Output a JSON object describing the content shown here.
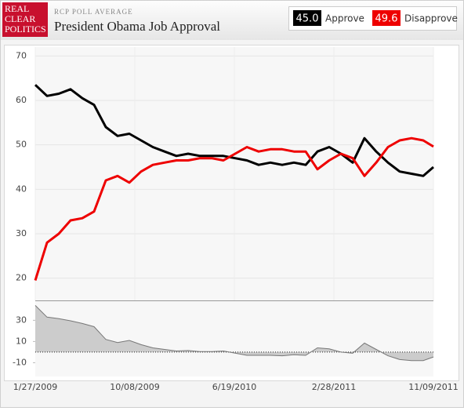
{
  "header": {
    "logo": [
      "REAL",
      "CLEAR",
      "POLITICS"
    ],
    "kicker": "RCP POLL AVERAGE"
  },
  "chart_data": [
    {
      "type": "line",
      "title": "President Obama Job Approval",
      "x": [
        "2009-01-27",
        "2009-02-26",
        "2009-03-28",
        "2009-04-27",
        "2009-05-27",
        "2009-06-26",
        "2009-07-26",
        "2009-08-25",
        "2009-09-24",
        "2009-10-24",
        "2009-11-23",
        "2009-12-23",
        "2010-01-22",
        "2010-02-21",
        "2010-03-23",
        "2010-04-22",
        "2010-05-22",
        "2010-06-21",
        "2010-07-21",
        "2010-08-20",
        "2010-09-19",
        "2010-10-19",
        "2010-11-18",
        "2010-12-18",
        "2011-01-17",
        "2011-02-16",
        "2011-03-18",
        "2011-04-17",
        "2011-05-17",
        "2011-06-16",
        "2011-07-16",
        "2011-08-15",
        "2011-09-14",
        "2011-10-14",
        "2011-11-09"
      ],
      "series": [
        {
          "name": "Approve",
          "color": "#000000",
          "legend_value": {
            "value": 45,
            "label": "45.0"
          },
          "values": [
            63.5,
            61,
            61.5,
            62.5,
            60.5,
            59,
            54,
            52,
            52.5,
            51,
            49.5,
            48.5,
            47.5,
            48,
            47.5,
            47.5,
            47.5,
            47,
            46.5,
            45.5,
            46,
            45.5,
            46,
            45.5,
            48.5,
            49.5,
            48,
            46,
            51.5,
            48.5,
            46,
            44,
            43.5,
            43,
            45
          ]
        },
        {
          "name": "Disapprove",
          "color": "#ee0000",
          "legend_value": {
            "value": 49.6,
            "label": "49.6"
          },
          "values": [
            19.5,
            28,
            30,
            33,
            33.5,
            35,
            42,
            43,
            41.5,
            44,
            45.5,
            46,
            46.5,
            46.5,
            47,
            47,
            46.5,
            48,
            49.5,
            48.5,
            49,
            49,
            48.5,
            48.5,
            44.5,
            46.5,
            48,
            47,
            43,
            46,
            49.5,
            51,
            51.5,
            51,
            49.6
          ]
        }
      ],
      "ylim": [
        15,
        72
      ],
      "yticks": [
        20,
        30,
        40,
        50,
        60,
        70
      ],
      "grid": true,
      "xlim": [
        "2009-01-27",
        "2011-11-09"
      ],
      "xticks": [
        {
          "value": "2009-01-27",
          "label": "1/27/2009"
        },
        {
          "value": "2009-10-08",
          "label": "10/08/2009"
        },
        {
          "value": "2010-06-19",
          "label": "6/19/2010"
        },
        {
          "value": "2011-02-28",
          "label": "2/28/2011"
        },
        {
          "value": "2011-11-09",
          "label": "11/09/2011"
        }
      ]
    },
    {
      "type": "area",
      "color": "#cccccc",
      "values": [
        44,
        33,
        31.5,
        29.5,
        27,
        24,
        12,
        9,
        11,
        7,
        4,
        2.5,
        1,
        1.5,
        0.5,
        0.5,
        1,
        -1,
        -3,
        -3,
        -3,
        -3.5,
        -2.5,
        -3,
        4,
        3,
        0,
        -1,
        8.5,
        2.5,
        -3.5,
        -7,
        -8,
        -8,
        -4.6
      ],
      "ylim": [
        -23,
        48
      ],
      "yticks": [
        -10,
        10,
        30
      ]
    }
  ]
}
